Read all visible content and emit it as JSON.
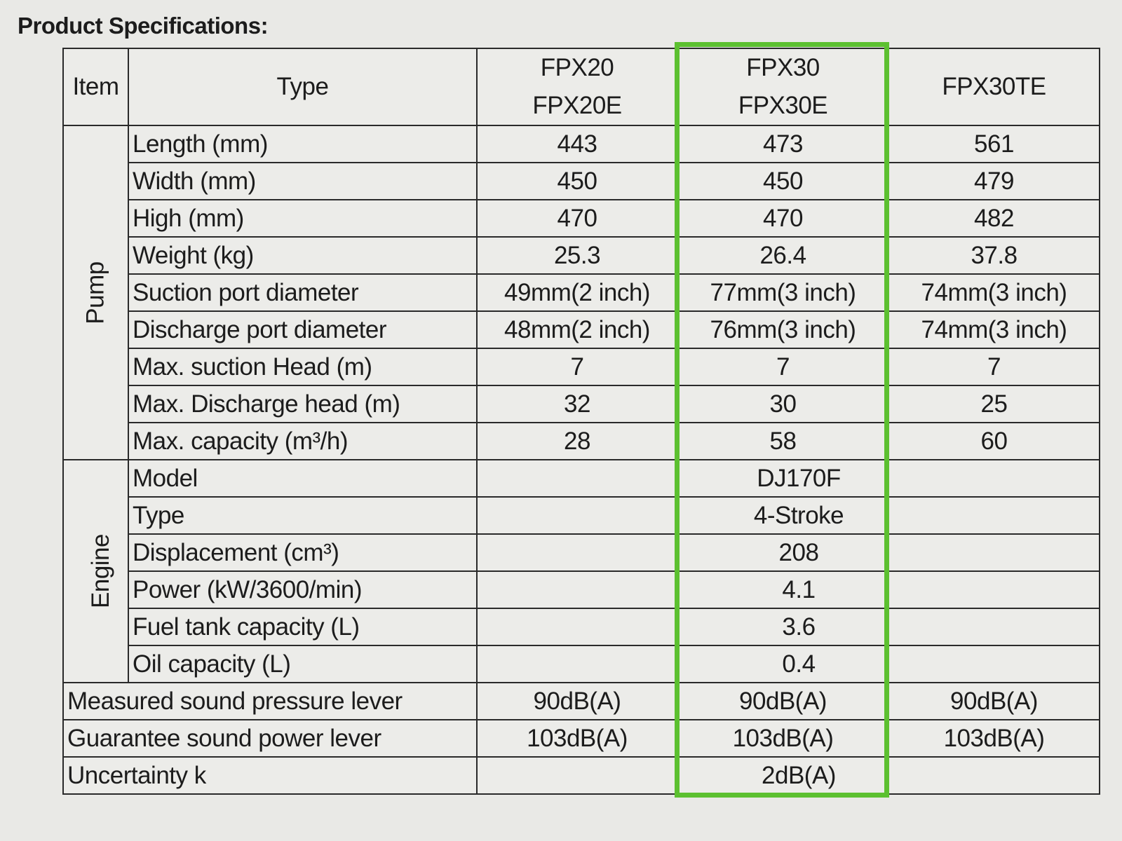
{
  "title": "Product Specifications:",
  "header": {
    "item": "Item",
    "type": "Type",
    "models": [
      [
        "FPX20",
        "FPX20E"
      ],
      [
        "FPX30",
        "FPX30E"
      ],
      [
        "FPX30TE"
      ]
    ]
  },
  "groups": {
    "pump": "Pump",
    "engine": "Engine"
  },
  "pump_rows": [
    {
      "label": "Length (mm)",
      "values": [
        "443",
        "473",
        "561"
      ]
    },
    {
      "label": "Width (mm)",
      "values": [
        "450",
        "450",
        "479"
      ]
    },
    {
      "label": "High (mm)",
      "values": [
        "470",
        "470",
        "482"
      ]
    },
    {
      "label": "Weight (kg)",
      "values": [
        "25.3",
        "26.4",
        "37.8"
      ]
    },
    {
      "label": "Suction port diameter",
      "values": [
        "49mm(2 inch)",
        "77mm(3 inch)",
        "74mm(3 inch)"
      ]
    },
    {
      "label": "Discharge port diameter",
      "values": [
        "48mm(2 inch)",
        "76mm(3 inch)",
        "74mm(3 inch)"
      ]
    },
    {
      "label": "Max. suction Head (m)",
      "values": [
        "7",
        "7",
        "7"
      ]
    },
    {
      "label": "Max. Discharge head (m)",
      "values": [
        "32",
        "30",
        "25"
      ]
    },
    {
      "label": "Max. capacity (m³/h)",
      "values": [
        "28",
        "58",
        "60"
      ]
    }
  ],
  "engine_rows": [
    {
      "label": "Model",
      "value": "DJ170F"
    },
    {
      "label": "Type",
      "value": "4-Stroke"
    },
    {
      "label": "Displacement (cm³)",
      "value": "208"
    },
    {
      "label": "Power (kW/3600/min)",
      "value": "4.1"
    },
    {
      "label": "Fuel tank capacity (L)",
      "value": "3.6"
    },
    {
      "label": "Oil capacity (L)",
      "value": "0.4"
    }
  ],
  "sound_rows": [
    {
      "label": "Measured sound pressure lever",
      "values": [
        "90dB(A)",
        "90dB(A)",
        "90dB(A)"
      ]
    },
    {
      "label": "Guarantee sound power lever",
      "values": [
        "103dB(A)",
        "103dB(A)",
        "103dB(A)"
      ]
    }
  ],
  "uncertainty": {
    "label": "Uncertainty k",
    "value": "2dB(A)"
  },
  "highlight_color": "#5cc030"
}
